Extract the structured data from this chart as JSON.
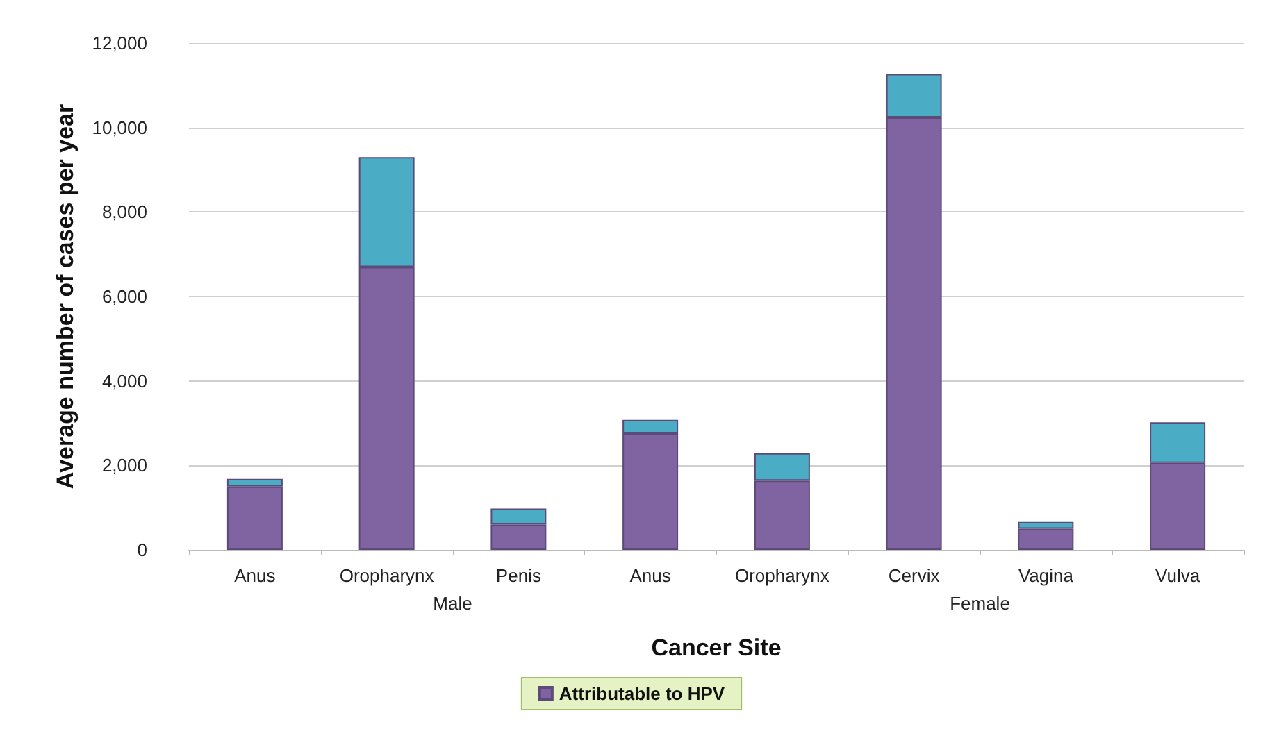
{
  "chart_data": {
    "type": "bar",
    "stacked": true,
    "xlabel": "Cancer Site",
    "ylabel": "Average number of cases per year",
    "categories": [
      "Anus",
      "Oropharynx",
      "Penis",
      "Anus",
      "Oropharynx",
      "Cervix",
      "Vagina",
      "Vulva"
    ],
    "series": [
      {
        "name": "Attributable to HPV",
        "color": "#8064a2",
        "values": [
          1500,
          6700,
          600,
          2760,
          1640,
          10240,
          500,
          2060
        ]
      },
      {
        "color": "#4bacc6",
        "values": [
          180,
          2600,
          380,
          320,
          650,
          1030,
          160,
          960
        ]
      }
    ],
    "ylim": [
      0,
      12000
    ],
    "yticks": [
      0,
      {
        "value": 2000,
        "label": "2,000"
      },
      {
        "value": 4000,
        "label": "4,000"
      },
      {
        "value": 6000,
        "label": "6,000"
      },
      {
        "value": 8000,
        "label": "8,000"
      },
      {
        "value": 10000,
        "label": "10,000"
      },
      {
        "value": 12000,
        "label": "12,000"
      }
    ],
    "grid": "y",
    "legend": "bottom",
    "annotations": [
      "Male",
      "Female"
    ]
  }
}
